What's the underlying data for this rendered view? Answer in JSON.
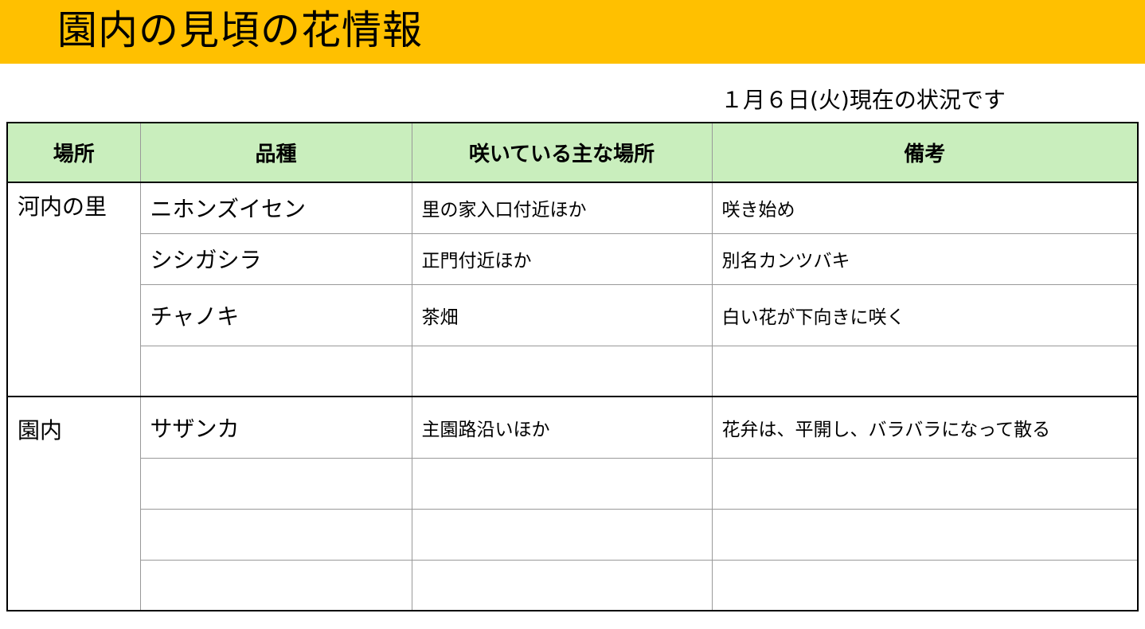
{
  "header": {
    "title": "園内の見頃の花情報",
    "banner_color": "#ffc000"
  },
  "status_date": "１月６日(火)現在の状況です",
  "table": {
    "header_color": "#c9eebd",
    "columns": [
      "場所",
      "品種",
      "咲いている主な場所",
      "備考"
    ],
    "groups": [
      {
        "location": "河内の里",
        "rows": [
          {
            "variety": "ニホンズイセン",
            "place": "里の家入口付近ほか",
            "note": "咲き始め"
          },
          {
            "variety": "シシガシラ",
            "place": "正門付近ほか",
            "note": "別名カンツバキ"
          },
          {
            "variety": "チャノキ",
            "place": "茶畑",
            "note": "白い花が下向きに咲く"
          },
          {
            "variety": "",
            "place": "",
            "note": ""
          }
        ]
      },
      {
        "location": "園内",
        "rows": [
          {
            "variety": "サザンカ",
            "place": "主園路沿いほか",
            "note": "花弁は、平開し、バラバラになって散る"
          },
          {
            "variety": "",
            "place": "",
            "note": ""
          },
          {
            "variety": "",
            "place": "",
            "note": ""
          },
          {
            "variety": "",
            "place": "",
            "note": ""
          }
        ]
      }
    ]
  }
}
